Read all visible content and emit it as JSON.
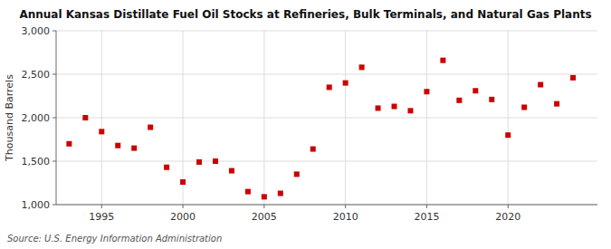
{
  "chart_data": {
    "type": "scatter",
    "title": "Annual Kansas Distillate Fuel Oil Stocks at Refineries, Bulk Terminals, and Natural Gas Plants",
    "y_label": "Thousand Barrels",
    "source": "Source: U.S. Energy Information Administration",
    "x": [
      1993,
      1994,
      1995,
      1996,
      1997,
      1998,
      1999,
      2000,
      2001,
      2002,
      2003,
      2004,
      2005,
      2006,
      2007,
      2008,
      2009,
      2010,
      2011,
      2012,
      2013,
      2014,
      2015,
      2016,
      2017,
      2018,
      2019,
      2020,
      2021,
      2022,
      2023,
      2024
    ],
    "values": [
      1700,
      2000,
      1840,
      1680,
      1650,
      1890,
      1430,
      1260,
      1490,
      1500,
      1390,
      1150,
      1090,
      1130,
      1350,
      1640,
      2350,
      2400,
      2580,
      2110,
      2130,
      2080,
      2300,
      2660,
      2200,
      2310,
      2210,
      1800,
      2120,
      2380,
      2160,
      2460
    ],
    "color": "#cc0000",
    "marker": "square",
    "xlim": [
      1992.2,
      2025.5
    ],
    "xticks": [
      1995,
      2000,
      2005,
      2010,
      2015,
      2020
    ],
    "ylim": [
      1000,
      3000
    ],
    "yticks": [
      {
        "value": 1000,
        "label": "1,000"
      },
      {
        "value": 1500,
        "label": "1,500"
      },
      {
        "value": 2000,
        "label": "2,000"
      },
      {
        "value": 2500,
        "label": "2,500"
      },
      {
        "value": 3000,
        "label": "3,000"
      }
    ],
    "grid": true
  }
}
